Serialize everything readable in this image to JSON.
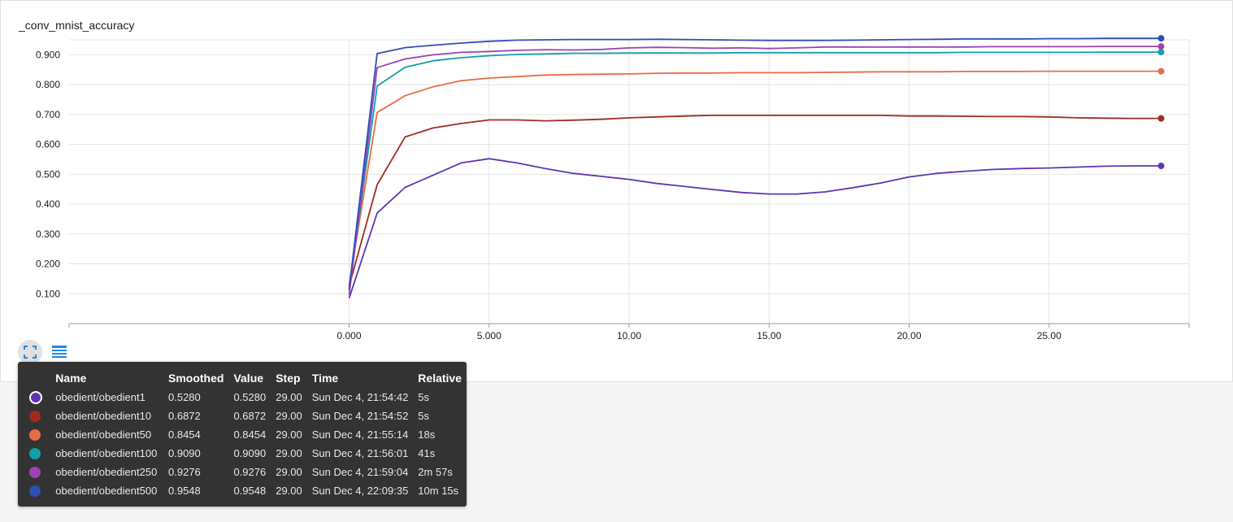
{
  "card": {
    "title": "_conv_mnist_accuracy"
  },
  "toolbar": {
    "expand_icon": "expand-icon",
    "list_icon": "data-table-icon"
  },
  "tooltip": {
    "headers": [
      "Name",
      "Smoothed",
      "Value",
      "Step",
      "Time",
      "Relative"
    ],
    "rows": [
      {
        "name": "obedient/obedient1",
        "smoothed": "0.5280",
        "value": "0.5280",
        "step": "29.00",
        "time": "Sun Dec 4, 21:54:42",
        "relative": "5s",
        "color": "#5e35b1",
        "selected": true
      },
      {
        "name": "obedient/obedient10",
        "smoothed": "0.6872",
        "value": "0.6872",
        "step": "29.00",
        "time": "Sun Dec 4, 21:54:52",
        "relative": "5s",
        "color": "#a12c1e",
        "selected": false
      },
      {
        "name": "obedient/obedient50",
        "smoothed": "0.8454",
        "value": "0.8454",
        "step": "29.00",
        "time": "Sun Dec 4, 21:55:14",
        "relative": "18s",
        "color": "#e86c47",
        "selected": false
      },
      {
        "name": "obedient/obedient100",
        "smoothed": "0.9090",
        "value": "0.9090",
        "step": "29.00",
        "time": "Sun Dec 4, 21:56:01",
        "relative": "41s",
        "color": "#11a0a8",
        "selected": false
      },
      {
        "name": "obedient/obedient250",
        "smoothed": "0.9276",
        "value": "0.9276",
        "step": "29.00",
        "time": "Sun Dec 4, 21:59:04",
        "relative": "2m 57s",
        "color": "#9c43b7",
        "selected": false
      },
      {
        "name": "obedient/obedient500",
        "smoothed": "0.9548",
        "value": "0.9548",
        "step": "29.00",
        "time": "Sun Dec 4, 22:09:35",
        "relative": "10m 15s",
        "color": "#2f4fb5",
        "selected": false
      }
    ]
  },
  "chart_data": {
    "type": "line",
    "title": "_conv_mnist_accuracy",
    "xlabel": "",
    "ylabel": "",
    "xlim": [
      -10,
      30
    ],
    "ylim": [
      0.0,
      0.95
    ],
    "x_ticks": [
      0,
      5,
      10,
      15,
      20,
      25
    ],
    "x_tick_labels": [
      "0.000",
      "5.000",
      "10.00",
      "15.00",
      "20.00",
      "25.00"
    ],
    "y_ticks": [
      0.1,
      0.2,
      0.3,
      0.4,
      0.5,
      0.6,
      0.7,
      0.8,
      0.9
    ],
    "y_tick_labels": [
      "0.100",
      "0.200",
      "0.300",
      "0.400",
      "0.500",
      "0.600",
      "0.700",
      "0.800",
      "0.900"
    ],
    "grid": true,
    "x": [
      0,
      1,
      2,
      3,
      4,
      5,
      6,
      7,
      8,
      9,
      10,
      11,
      12,
      13,
      14,
      15,
      16,
      17,
      18,
      19,
      20,
      21,
      22,
      23,
      24,
      25,
      26,
      27,
      28,
      29
    ],
    "series": [
      {
        "name": "obedient/obedient1",
        "color": "#5e35b1",
        "values": [
          0.085,
          0.37,
          0.456,
          0.497,
          0.538,
          0.552,
          0.538,
          0.519,
          0.503,
          0.493,
          0.483,
          0.469,
          0.459,
          0.449,
          0.439,
          0.434,
          0.434,
          0.441,
          0.455,
          0.471,
          0.491,
          0.503,
          0.51,
          0.516,
          0.519,
          0.521,
          0.524,
          0.527,
          0.528,
          0.528
        ]
      },
      {
        "name": "obedient/obedient10",
        "color": "#a12c1e",
        "values": [
          0.125,
          0.465,
          0.625,
          0.655,
          0.67,
          0.682,
          0.682,
          0.679,
          0.681,
          0.684,
          0.689,
          0.692,
          0.695,
          0.697,
          0.697,
          0.697,
          0.697,
          0.697,
          0.697,
          0.697,
          0.695,
          0.695,
          0.694,
          0.693,
          0.693,
          0.692,
          0.689,
          0.688,
          0.687,
          0.687
        ]
      },
      {
        "name": "obedient/obedient50",
        "color": "#e86c47",
        "values": [
          0.13,
          0.707,
          0.763,
          0.793,
          0.813,
          0.822,
          0.827,
          0.832,
          0.834,
          0.835,
          0.836,
          0.838,
          0.839,
          0.839,
          0.84,
          0.84,
          0.84,
          0.841,
          0.842,
          0.843,
          0.843,
          0.843,
          0.844,
          0.844,
          0.844,
          0.845,
          0.845,
          0.845,
          0.845,
          0.845
        ]
      },
      {
        "name": "obedient/obedient100",
        "color": "#11a0a8",
        "values": [
          0.11,
          0.795,
          0.858,
          0.88,
          0.89,
          0.897,
          0.901,
          0.903,
          0.905,
          0.905,
          0.906,
          0.906,
          0.906,
          0.906,
          0.907,
          0.907,
          0.907,
          0.907,
          0.907,
          0.907,
          0.907,
          0.907,
          0.908,
          0.908,
          0.908,
          0.908,
          0.908,
          0.909,
          0.909,
          0.909
        ]
      },
      {
        "name": "obedient/obedient250",
        "color": "#9c43b7",
        "values": [
          0.095,
          0.857,
          0.886,
          0.9,
          0.908,
          0.911,
          0.915,
          0.917,
          0.916,
          0.918,
          0.923,
          0.925,
          0.924,
          0.922,
          0.923,
          0.921,
          0.923,
          0.926,
          0.926,
          0.926,
          0.926,
          0.926,
          0.926,
          0.927,
          0.927,
          0.927,
          0.927,
          0.928,
          0.928,
          0.928
        ]
      },
      {
        "name": "obedient/obedient500",
        "color": "#2f4fb5",
        "values": [
          0.115,
          0.904,
          0.924,
          0.932,
          0.939,
          0.945,
          0.949,
          0.95,
          0.951,
          0.951,
          0.951,
          0.952,
          0.951,
          0.95,
          0.949,
          0.948,
          0.948,
          0.948,
          0.949,
          0.95,
          0.951,
          0.952,
          0.953,
          0.953,
          0.953,
          0.954,
          0.954,
          0.955,
          0.955,
          0.955
        ]
      }
    ]
  }
}
